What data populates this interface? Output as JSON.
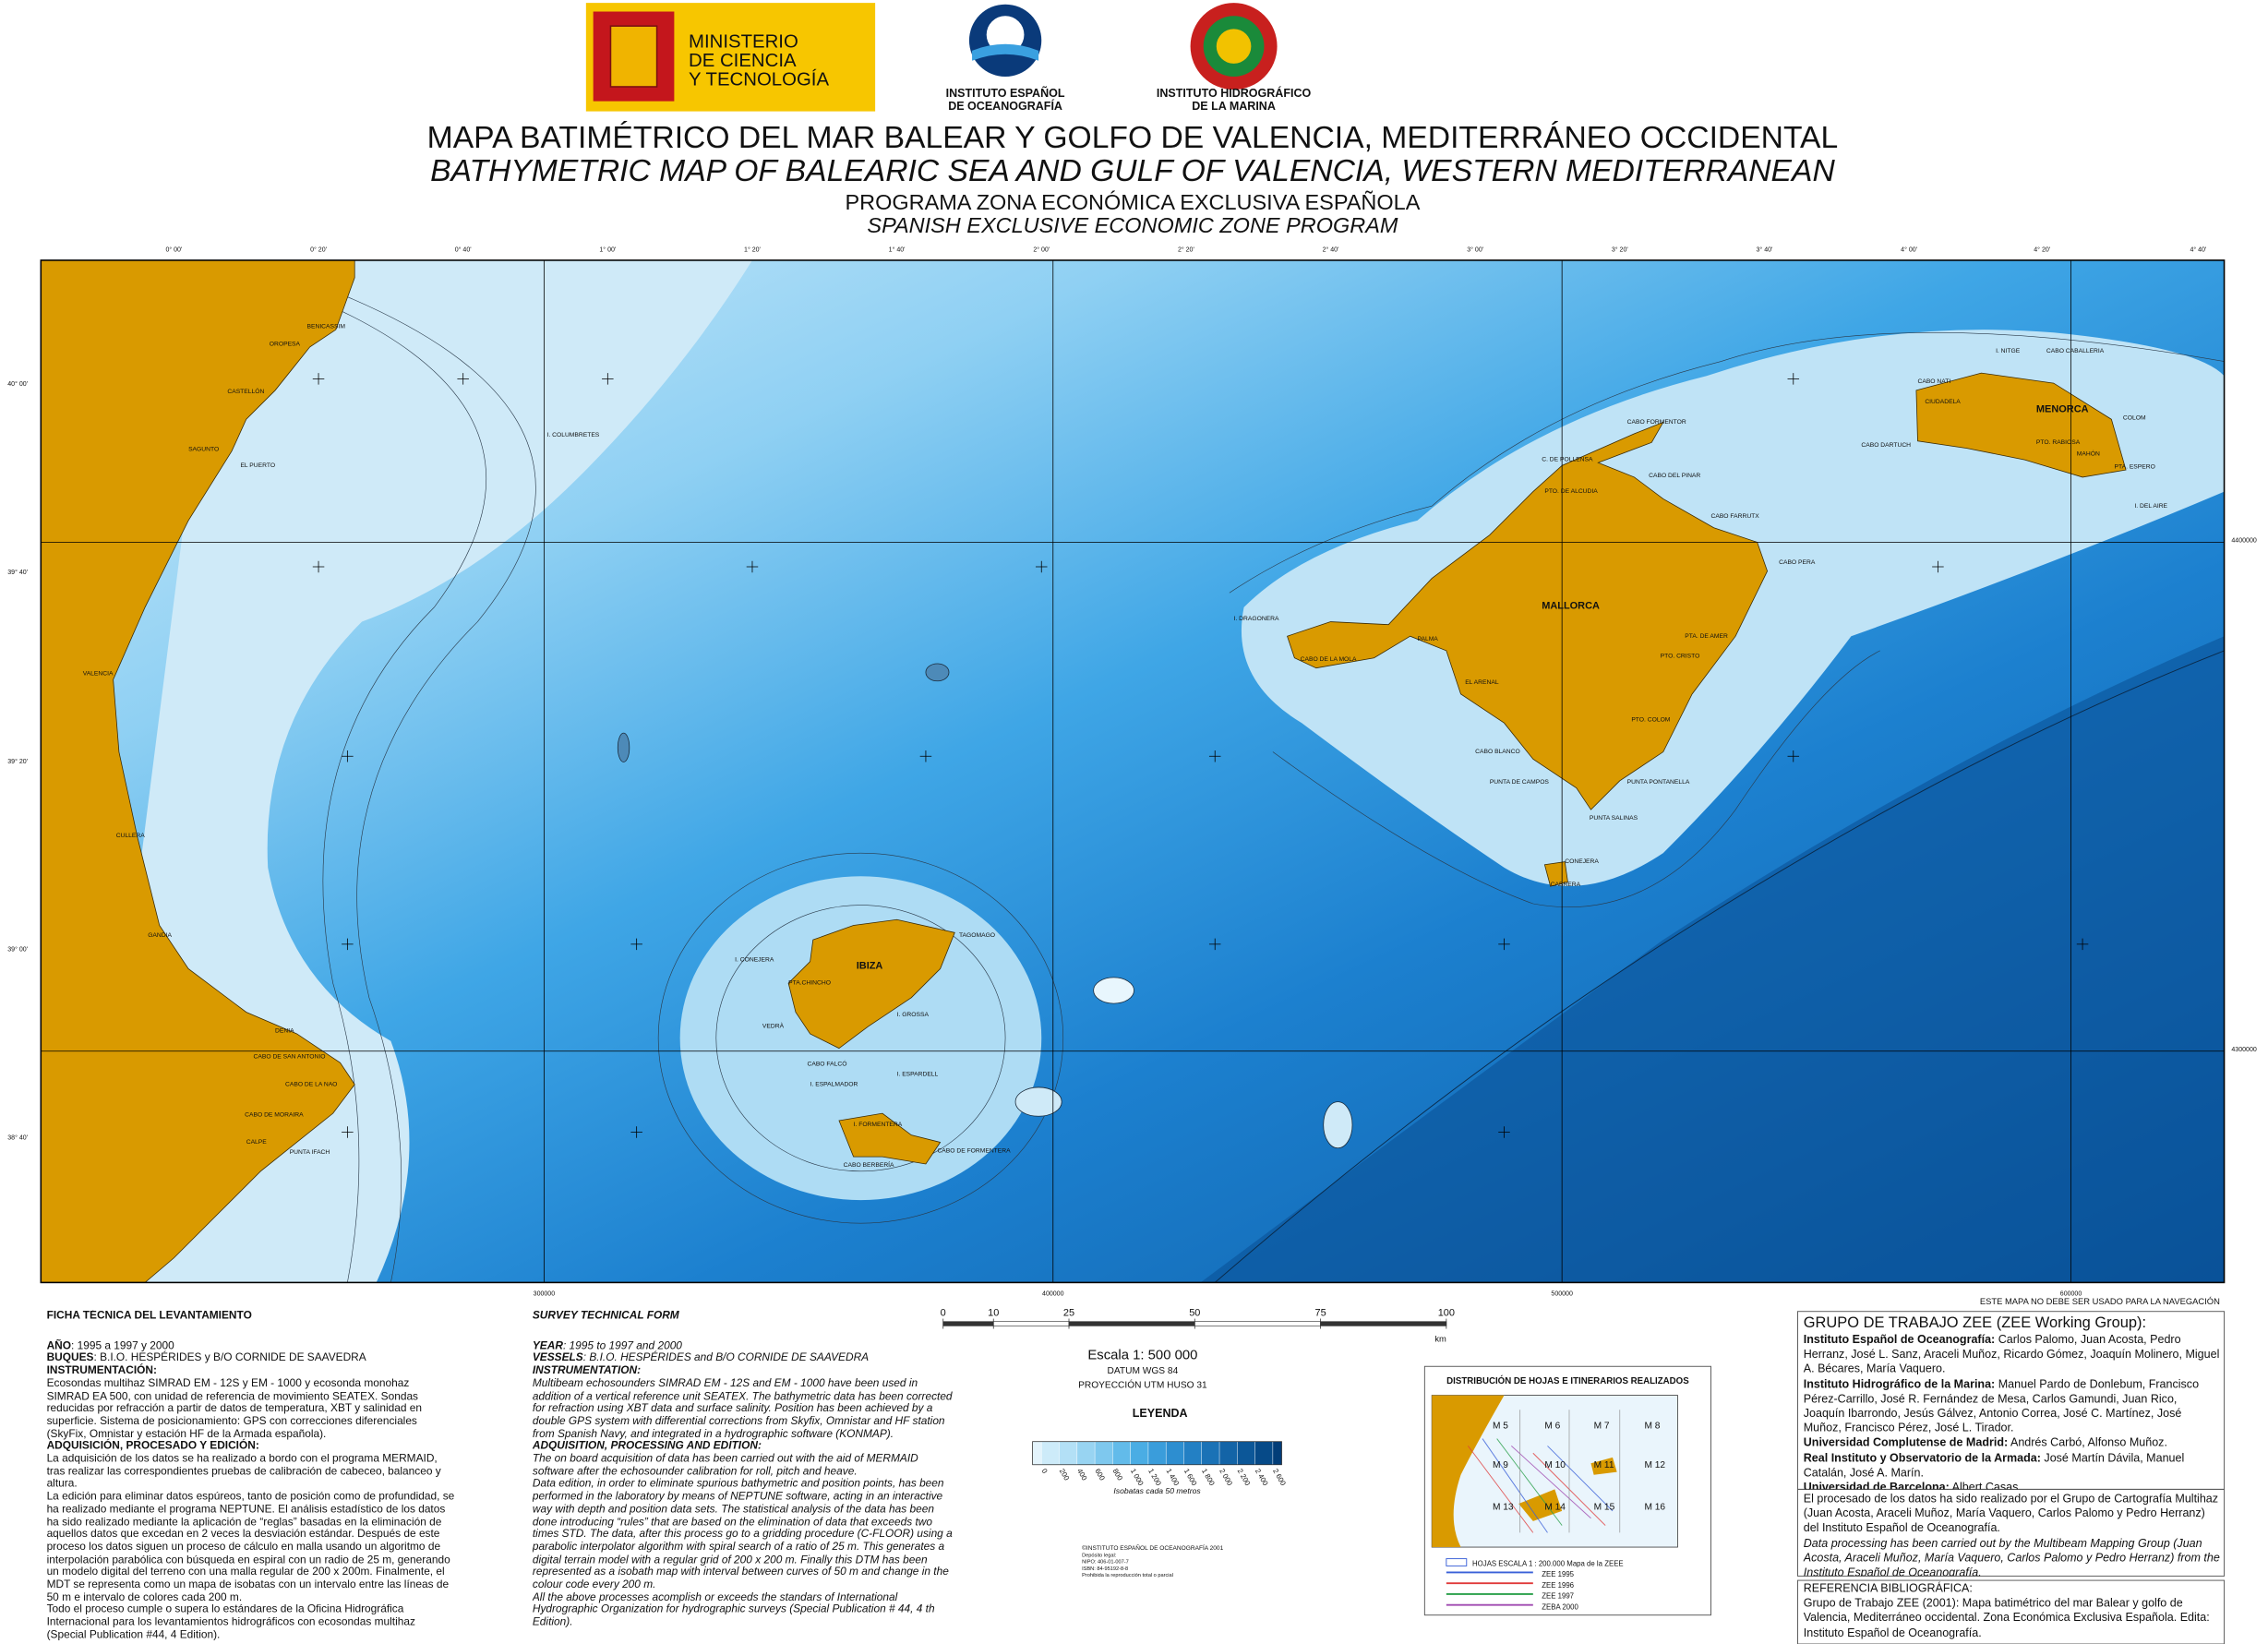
{
  "header": {
    "ministry": [
      "MINISTERIO",
      "DE CIENCIA",
      "Y TECNOLOGÍA"
    ],
    "ieo": [
      "INSTITUTO ESPAÑOL",
      "DE OCEANOGRAFÍA"
    ],
    "ihm": [
      "INSTITUTO HIDROGRÁFICO",
      "DE LA MARINA"
    ],
    "title_es": "MAPA BATIMÉTRICO DEL MAR BALEAR Y GOLFO DE VALENCIA, MEDITERRÁNEO OCCIDENTAL",
    "title_en": "BATHYMETRIC MAP OF BALEARIC SEA AND GULF OF VALENCIA, WESTERN MEDITERRANEAN",
    "program_es": "PROGRAMA ZONA ECONÓMICA EXCLUSIVA ESPAÑOLA",
    "program_en": "SPANISH EXCLUSIVE ECONOMIC ZONE PROGRAM"
  },
  "map": {
    "lon_labels": [
      "0° 00'",
      "0° 20'",
      "0° 40'",
      "1° 00'",
      "1° 20'",
      "1° 40'",
      "2° 00'",
      "2° 20'",
      "2° 40'",
      "3° 00'",
      "3° 20'",
      "3° 40'",
      "4° 00'",
      "4° 20'",
      "4° 40'"
    ],
    "lat_labels": [
      "40° 00'",
      "39° 40'",
      "39° 20'",
      "39° 00'",
      "38° 40'"
    ],
    "utm_x_labels": [
      "300000",
      "400000",
      "500000",
      "600000"
    ],
    "utm_y_labels": [
      "4400000",
      "4300000"
    ],
    "places": [
      "BENICASSIM",
      "OROPESA",
      "CASTELLÓN",
      "SAGUNTO",
      "EL PUERTO",
      "VALENCIA",
      "CULLERA",
      "GANDIA",
      "DENIA",
      "CABO DE SAN ANTONIO",
      "CABO DE LA NAO",
      "CABO DE MORAIRA",
      "CALPE",
      "PUNTA IFACH",
      "I. COLUMBRETES",
      "IBIZA",
      "TAGOMAGO",
      "I. CONEJERA",
      "PTA.CHINCHO",
      "I. GROSSA",
      "VEDRÀ",
      "CABO FALCÓ",
      "I. ESPALMADOR",
      "I. ESPARDELL",
      "I. FORMENTERA",
      "CABO DE FORMENTERA",
      "CABO BERBERÍA",
      "MALLORCA",
      "I. DRAGONERA",
      "PALMA",
      "CABO DE LA MOLA",
      "EL ARENAL",
      "PTA. DE AMER",
      "PTO. CRISTO",
      "PTO. COLOM",
      "CABO BLANCO",
      "PUNTA DE CAMPOS",
      "PUNTA PONTANELLA",
      "PUNTA SALINAS",
      "CONEJERA",
      "CABRERA",
      "CABO FORMENTOR",
      "C. DE POLLENSA",
      "PTO. DE ALCUDIA",
      "CABO DEL PINAR",
      "CABO FARRUTX",
      "CABO PERA",
      "MENORCA",
      "I. NITGE",
      "CABO CABALLERIA",
      "CABO NATI",
      "CIUDADELA",
      "COLOM",
      "CABO DARTUCH",
      "PTO. RABIOSA",
      "MAHÓN",
      "PTA. ESPERO",
      "I. DEL AIRE"
    ],
    "notice": "ESTE MAPA NO DEBE SER USADO PARA LA NAVEGACIÓN"
  },
  "survey_es": {
    "heading": "FICHA TÉCNICA DEL LEVANTAMIENTO",
    "items": [
      {
        "b": "AÑO",
        "t": ": 1995 a 1997 y 2000"
      },
      {
        "b": "BUQUES",
        "t": ": B.I.O. HESPÉRIDES y B/O CORNIDE DE SAAVEDRA"
      },
      {
        "b": "INSTRUMENTACIÓN:"
      },
      {
        "t": "Ecosondas multihaz SIMRAD EM - 12S y EM - 1000 y ecosonda monohaz SIMRAD EA 500, con unidad de referencia de movimiento SEATEX. Sondas reducidas por refracción a partir de datos de temperatura, XBT y salinidad en superficie. Sistema de posicionamiento: GPS con correcciones diferenciales (SkyFix, Omnistar y estación HF de la Armada española)."
      },
      {
        "b": "ADQUISICIÓN, PROCESADO Y EDICIÓN:"
      },
      {
        "t": "La adquisición de los datos se ha realizado a bordo con el programa MERMAID, tras realizar las correspondientes pruebas de calibración de cabeceo, balanceo y altura."
      },
      {
        "t": "La edición para eliminar datos espúreos, tanto de posición como de profundidad, se ha realizado mediante el programa NEPTUNE. El análisis estadístico de los datos ha sido realizado mediante la aplicación de “reglas” basadas en la eliminación de aquellos datos que excedan en 2 veces la desviación estándar. Después de este proceso los datos siguen un proceso de cálculo en malla usando un algoritmo de interpolación parabólica con búsqueda en espiral con un radio de 25 m, generando un modelo digital del terreno con una malla regular de 200 x 200m. Finalmente, el MDT se representa como un mapa de isobatas con un intervalo entre las líneas de 50 m e intervalo de colores cada 200 m."
      },
      {
        "t": "Todo el proceso cumple o supera lo estándares de la Oficina Hidrográfica Internacional para los levantamientos hidrográficos con ecosondas multihaz (Special Publication #44, 4 Edition)."
      }
    ]
  },
  "survey_en": {
    "heading": "SURVEY TECHNICAL FORM",
    "items": [
      {
        "b": "YEAR",
        "t": ": 1995 to 1997 and 2000"
      },
      {
        "b": "VESSELS",
        "t": ": B.I.O. HESPÉRIDES and B/O CORNIDE DE SAAVEDRA"
      },
      {
        "b": "INSTRUMENTATION:"
      },
      {
        "t": "Multibeam echosounders SIMRAD EM - 12S and EM - 1000 have been used in addition of a vertical reference unit SEATEX. The bathymetric data has been corrected for refraction using XBT data and surface salinity. Position has been achieved by a double GPS system with differential corrections from Skyfix, Omnistar and HF station from Spanish Navy, and integrated in a hydrographic software (KONMAP)."
      },
      {
        "b": "ADQUISITION, PROCESSING AND EDITION:"
      },
      {
        "t": "The on board acquisition of data has been carried out with the aid of MERMAID software after the echosounder calibration for roll, pitch and heave."
      },
      {
        "t": "Data edition, in order to eliminate spurious bathymetric and position points, has been performed in the laboratory by means of NEPTUNE software, acting in an interactive way with depth and position data sets. The statistical analysis of the data has been done introducing “rules” that are based on the elimination of data that exceeds two times STD. The data, after this process go to a gridding procedure (C-FLOOR) using a parabolic interpolator algorithm with spiral search of a ratio of 25 m. This generates a digital terrain model with a regular grid of 200 x 200 m. Finally this DTM has been represented as a isobath map with interval between curves of 50 m and change in the colour code every 200 m."
      },
      {
        "t": "All the above processes acomplish or exceeds the standars of International Hydrographic Organization for hydrographic surveys (Special Publication # 44, 4 th Edition)."
      }
    ]
  },
  "scale": {
    "ticks": [
      0,
      10,
      25,
      50,
      75,
      100
    ],
    "unit": "km",
    "scale": "Escala 1: 500 000",
    "datum": "DATUM WGS 84",
    "projection": "PROYECCIÓN UTM HUSO 31"
  },
  "legend": {
    "title": "LEYENDA",
    "depths": [
      0,
      200,
      400,
      600,
      800,
      {
        "value": 1000,
        "label": "1 000"
      },
      {
        "value": 1200,
        "label": "1 200"
      },
      {
        "value": 1400,
        "label": "1 400"
      },
      {
        "value": 1600,
        "label": "1 600"
      },
      {
        "value": 1800,
        "label": "1 800"
      },
      {
        "value": 2000,
        "label": "2 000"
      },
      {
        "value": 2200,
        "label": "2 200"
      },
      {
        "value": 2400,
        "label": "2 400"
      },
      {
        "value": 2600,
        "label": "2 600"
      }
    ],
    "caption": "Isobatas cada 50 metros"
  },
  "credits": [
    "©INSTITUTO ESPAÑOL DE OCEANOGRAFÍA 2001",
    "Depósito legal:",
    "NIPO: 406-01-007-7",
    "ISBN: 84-95192-8-8",
    "Prohibida la reproducción total o parcial"
  ],
  "distribution": {
    "title": "DISTRIBUCIÓN DE HOJAS E ITINERARIOS REALIZADOS",
    "sheets": [
      "M 5",
      "M 6",
      "M 7",
      "M 8",
      "M 9",
      "M 10",
      "M 11",
      "M 12",
      "M 13",
      "M 14",
      "M 15",
      "M 16"
    ],
    "legend": [
      "HOJAS ESCALA 1 : 200.000 Mapa de la ZEEE",
      "ZEE 1995",
      "ZEE 1996",
      "ZEE 1997",
      "ZEBA 2000"
    ]
  },
  "working_group": {
    "heading": "GRUPO DE TRABAJO ZEE (ZEE Working Group):",
    "entries": [
      {
        "org": "Instituto Español de Oceanografía:",
        "members": "Carlos Palomo, Juan Acosta, Pedro Herranz, José L. Sanz, Araceli Muñoz, Ricardo Gómez, Joaquín Molinero, Miguel A. Bécares, María Vaquero."
      },
      {
        "org": "Instituto Hidrográfico de la Marina:",
        "members": "Manuel Pardo de Donlebum, Francisco Pérez-Carrillo, José R. Fernández de Mesa, Carlos Gamundi, Juan Rico, Joaquín Ibarrondo, Jesús Gálvez, Antonio Correa, José C. Martínez, José Muñoz, Francisco Pérez, José L. Tirador."
      },
      {
        "org": "Universidad Complutense de Madrid:",
        "members": "Andrés Carbó, Alfonso Muñoz."
      },
      {
        "org": "Real Instituto y Observatorio de la Armada:",
        "members": "José Martín Dávila, Manuel Catalán, José A. Marín."
      },
      {
        "org": "Universidad de Barcelona:",
        "members": "Albert Casas."
      }
    ]
  },
  "processing": [
    "El procesado de los datos ha sido realizado por el Grupo de Cartografía Multihaz (Juan Acosta, Araceli Muñoz, María Vaquero, Carlos Palomo y Pedro Herranz) del Instituto Español de Oceanografía.",
    "Data processing has been carried out by the Multibeam Mapping Group (Juan Acosta, Araceli Muñoz, María Vaquero, Carlos Palomo y Pedro Herranz) from the Instituto Español de Oceanografía."
  ],
  "reference": {
    "heading": "REFERENCIA BIBLIOGRÁFICA:",
    "text": "Grupo de Trabajo ZEE (2001): Mapa batimétrico del mar Balear y golfo de Valencia, Mediterráneo occidental. Zona Económica Exclusiva Española. Edita: Instituto Español de Oceanografía."
  }
}
